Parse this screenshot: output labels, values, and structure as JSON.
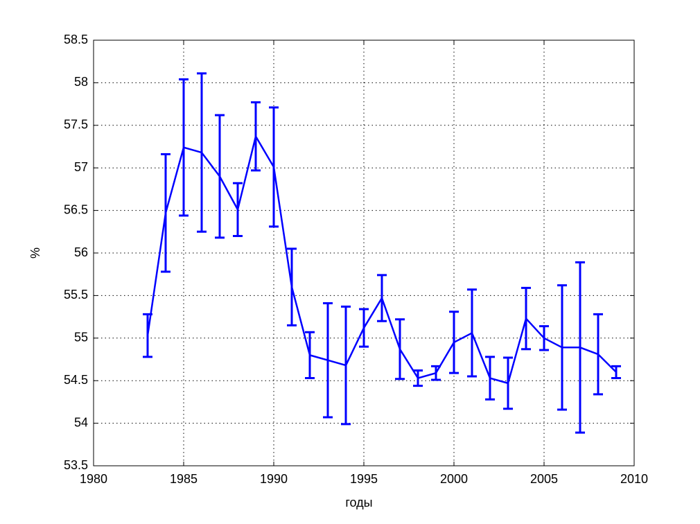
{
  "chart_data": {
    "type": "errorbar",
    "x": [
      1983,
      1984,
      1985,
      1986,
      1987,
      1988,
      1989,
      1990,
      1991,
      1992,
      1993,
      1994,
      1995,
      1996,
      1997,
      1998,
      1999,
      2000,
      2001,
      2002,
      2003,
      2004,
      2005,
      2006,
      2007,
      2008,
      2009
    ],
    "values": [
      55.03,
      56.47,
      57.24,
      57.18,
      56.9,
      56.51,
      57.37,
      57.01,
      55.6,
      54.8,
      54.74,
      54.68,
      55.12,
      55.47,
      54.87,
      54.53,
      54.59,
      54.95,
      55.06,
      54.53,
      54.47,
      55.23,
      55.0,
      54.89,
      54.89,
      54.81,
      54.6
    ],
    "errors": [
      0.25,
      0.69,
      0.8,
      0.93,
      0.72,
      0.31,
      0.4,
      0.7,
      0.45,
      0.27,
      0.67,
      0.69,
      0.22,
      0.27,
      0.35,
      0.09,
      0.08,
      0.36,
      0.51,
      0.25,
      0.3,
      0.36,
      0.14,
      0.73,
      1.0,
      0.47,
      0.07
    ],
    "color": "#0000ff",
    "xlabel": "годы",
    "ylabel": "%",
    "xlim": [
      1980,
      2010
    ],
    "xticks": [
      1980,
      1985,
      1990,
      1995,
      2000,
      2005,
      2010
    ],
    "ylim": [
      53.5,
      58.5
    ],
    "yticks": [
      53.5,
      54,
      54.5,
      55,
      55.5,
      56,
      56.5,
      57,
      57.5,
      58,
      58.5
    ],
    "grid": true
  }
}
